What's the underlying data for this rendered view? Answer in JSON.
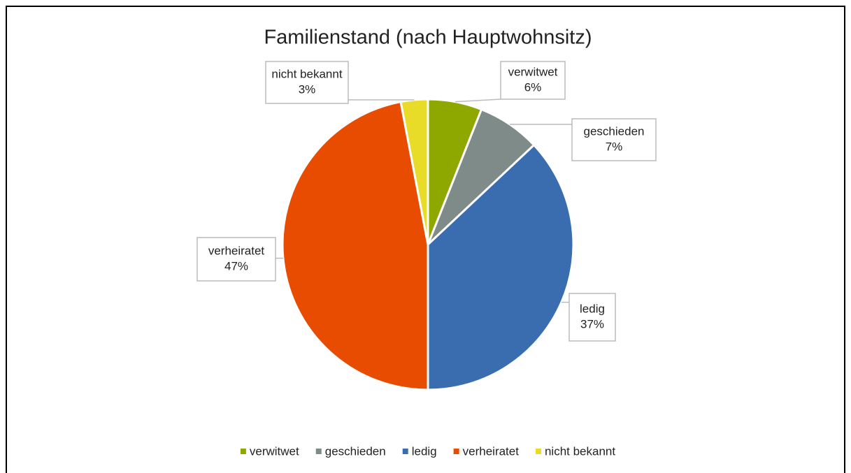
{
  "chart_data": {
    "type": "pie",
    "title": "Familienstand (nach Hauptwohnsitz)",
    "categories": [
      "verwitwet",
      "geschieden",
      "ledig",
      "verheiratet",
      "nicht bekannt"
    ],
    "values": [
      6,
      7,
      37,
      47,
      3
    ],
    "value_labels": [
      "6%",
      "7%",
      "37%",
      "47%",
      "3%"
    ],
    "colors": [
      "#8fa800",
      "#7f8b89",
      "#3a6db0",
      "#e84c00",
      "#e8dc28"
    ],
    "legend": "bottom"
  }
}
